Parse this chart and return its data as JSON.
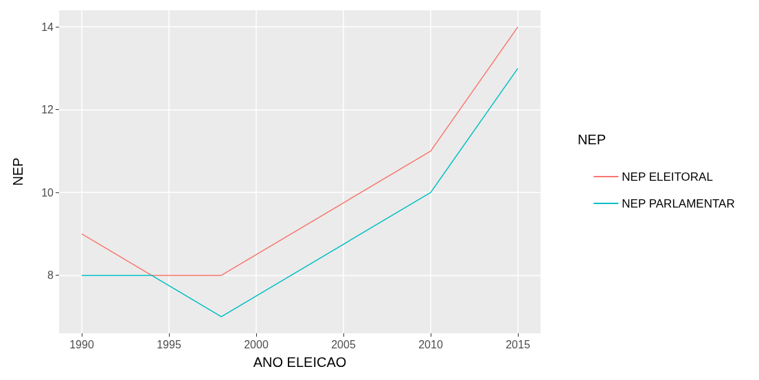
{
  "chart_data": {
    "type": "line",
    "xlabel": "ANO ELEICAO",
    "ylabel": "NEP",
    "legend_title": "NEP",
    "x": [
      1990,
      1994,
      1998,
      2010,
      2015
    ],
    "series": [
      {
        "name": "NEP ELEITORAL",
        "color": "#f8766d",
        "values": [
          9,
          8,
          8,
          11,
          14
        ]
      },
      {
        "name": "NEP PARLAMENTAR",
        "color": "#00bfc4",
        "values": [
          8,
          8,
          7,
          10,
          13
        ]
      }
    ],
    "xlim": [
      1988.7,
      2016.3
    ],
    "xticks": [
      1990,
      1995,
      2000,
      2005,
      2010,
      2015
    ],
    "ylim": [
      6.6,
      14.4
    ],
    "yticks": [
      8,
      10,
      12,
      14
    ],
    "grid": true,
    "legend": "right",
    "marker": "none",
    "line_style": "solid"
  }
}
